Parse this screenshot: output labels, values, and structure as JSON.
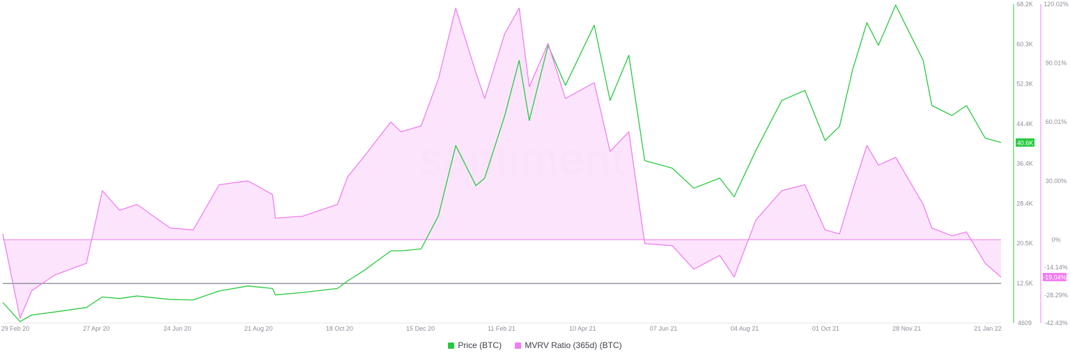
{
  "watermark": "santiment",
  "legend": {
    "items": [
      {
        "label": "Price (BTC)",
        "color": "#26c93e"
      },
      {
        "label": "MVRV Ratio (365d) (BTC)",
        "color": "#f07df0"
      }
    ]
  },
  "chart_data": {
    "type": "line",
    "x_start": "2020-02-29",
    "x_end": "2022-01-21",
    "x_tick_labels": [
      "29 Feb 20",
      "27 Apr 20",
      "24 Jun 20",
      "21 Aug 20",
      "18 Oct 20",
      "15 Dec 20",
      "11 Feb 21",
      "10 Apr 21",
      "07 Jun 21",
      "04 Aug 21",
      "01 Oct 21",
      "28 Nov 21",
      "21 Jan 22"
    ],
    "y_price": {
      "label_ticks": [
        "68.2K",
        "60.3K",
        "52.3K",
        "44.4K",
        "36.4K",
        "28.4K",
        "20.5K",
        "12.5K",
        "4609"
      ],
      "min": 4609,
      "max": 68200,
      "color": "#26c93e"
    },
    "y_mvrv": {
      "label_ticks": [
        "120.02%",
        "90.01%",
        "60.01%",
        "30.00%",
        "0%",
        "-14.14%",
        "-28.29%",
        "-42.43%"
      ],
      "min": -42.43,
      "max": 120.02,
      "color": "#f07df0"
    },
    "current_price_badge": "40.6K",
    "current_mvrv_badge": "-19.04%",
    "series": [
      {
        "name": "Price (BTC)",
        "axis": "price",
        "points": [
          [
            "2020-02-29",
            8700
          ],
          [
            "2020-03-12",
            4900
          ],
          [
            "2020-03-20",
            6200
          ],
          [
            "2020-04-05",
            6800
          ],
          [
            "2020-04-27",
            7700
          ],
          [
            "2020-05-08",
            9800
          ],
          [
            "2020-05-20",
            9500
          ],
          [
            "2020-06-01",
            10000
          ],
          [
            "2020-06-24",
            9300
          ],
          [
            "2020-07-10",
            9200
          ],
          [
            "2020-07-28",
            11000
          ],
          [
            "2020-08-17",
            12000
          ],
          [
            "2020-09-03",
            11500
          ],
          [
            "2020-09-05",
            10200
          ],
          [
            "2020-09-24",
            10700
          ],
          [
            "2020-10-18",
            11500
          ],
          [
            "2020-10-25",
            13000
          ],
          [
            "2020-11-05",
            15000
          ],
          [
            "2020-11-24",
            19000
          ],
          [
            "2020-12-01",
            19000
          ],
          [
            "2020-12-15",
            19400
          ],
          [
            "2020-12-27",
            26000
          ],
          [
            "2021-01-08",
            40000
          ],
          [
            "2021-01-22",
            32000
          ],
          [
            "2021-01-28",
            33500
          ],
          [
            "2021-02-11",
            46000
          ],
          [
            "2021-02-21",
            57000
          ],
          [
            "2021-02-28",
            45000
          ],
          [
            "2021-03-13",
            60000
          ],
          [
            "2021-03-25",
            52000
          ],
          [
            "2021-04-14",
            64000
          ],
          [
            "2021-04-25",
            49000
          ],
          [
            "2021-05-08",
            58000
          ],
          [
            "2021-05-19",
            37000
          ],
          [
            "2021-06-07",
            35500
          ],
          [
            "2021-06-22",
            31500
          ],
          [
            "2021-07-10",
            33500
          ],
          [
            "2021-07-20",
            29800
          ],
          [
            "2021-08-04",
            39000
          ],
          [
            "2021-08-22",
            49000
          ],
          [
            "2021-09-07",
            51000
          ],
          [
            "2021-09-21",
            41000
          ],
          [
            "2021-10-01",
            43800
          ],
          [
            "2021-10-10",
            55000
          ],
          [
            "2021-10-20",
            64500
          ],
          [
            "2021-10-28",
            60000
          ],
          [
            "2021-11-09",
            68000
          ],
          [
            "2021-11-28",
            57000
          ],
          [
            "2021-12-04",
            48000
          ],
          [
            "2021-12-18",
            46000
          ],
          [
            "2021-12-28",
            48000
          ],
          [
            "2022-01-10",
            41500
          ],
          [
            "2022-01-21",
            40600
          ]
        ]
      },
      {
        "name": "MVRV Ratio (365d) (BTC)",
        "axis": "mvrv",
        "points": [
          [
            "2020-02-29",
            3
          ],
          [
            "2020-03-12",
            -40
          ],
          [
            "2020-03-20",
            -26
          ],
          [
            "2020-04-05",
            -18
          ],
          [
            "2020-04-27",
            -12
          ],
          [
            "2020-05-08",
            25
          ],
          [
            "2020-05-20",
            15
          ],
          [
            "2020-06-01",
            18
          ],
          [
            "2020-06-24",
            6
          ],
          [
            "2020-07-10",
            5
          ],
          [
            "2020-07-28",
            28
          ],
          [
            "2020-08-17",
            30
          ],
          [
            "2020-09-03",
            23
          ],
          [
            "2020-09-05",
            11
          ],
          [
            "2020-09-24",
            12
          ],
          [
            "2020-10-18",
            18
          ],
          [
            "2020-10-25",
            32
          ],
          [
            "2020-11-05",
            42
          ],
          [
            "2020-11-24",
            60
          ],
          [
            "2020-12-01",
            55
          ],
          [
            "2020-12-15",
            58
          ],
          [
            "2020-12-27",
            82
          ],
          [
            "2021-01-08",
            118
          ],
          [
            "2021-01-22",
            85
          ],
          [
            "2021-01-28",
            72
          ],
          [
            "2021-02-11",
            105
          ],
          [
            "2021-02-21",
            118
          ],
          [
            "2021-02-28",
            78
          ],
          [
            "2021-03-13",
            100
          ],
          [
            "2021-03-25",
            72
          ],
          [
            "2021-04-14",
            80
          ],
          [
            "2021-04-25",
            45
          ],
          [
            "2021-05-08",
            55
          ],
          [
            "2021-05-19",
            -2
          ],
          [
            "2021-06-07",
            -3
          ],
          [
            "2021-06-22",
            -15
          ],
          [
            "2021-07-10",
            -8
          ],
          [
            "2021-07-20",
            -19
          ],
          [
            "2021-08-04",
            10
          ],
          [
            "2021-08-22",
            25
          ],
          [
            "2021-09-07",
            28
          ],
          [
            "2021-09-21",
            5
          ],
          [
            "2021-10-01",
            3
          ],
          [
            "2021-10-10",
            25
          ],
          [
            "2021-10-20",
            48
          ],
          [
            "2021-10-28",
            38
          ],
          [
            "2021-11-09",
            42
          ],
          [
            "2021-11-28",
            18
          ],
          [
            "2021-12-04",
            6
          ],
          [
            "2021-12-18",
            2
          ],
          [
            "2021-12-28",
            4
          ],
          [
            "2022-01-10",
            -12
          ],
          [
            "2022-01-21",
            -19.04
          ]
        ]
      }
    ],
    "reference_lines": [
      {
        "axis": "mvrv",
        "value": 0,
        "color": "#f07df0"
      }
    ],
    "grid": false,
    "legend_position": "bottom-center"
  }
}
